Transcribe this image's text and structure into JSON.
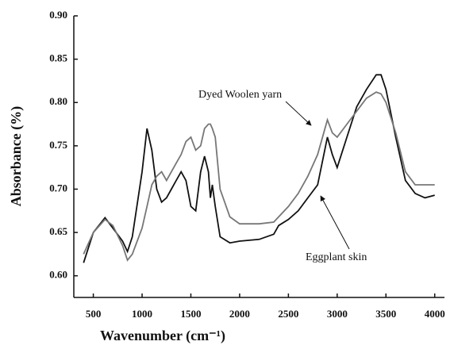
{
  "chart_data": {
    "type": "line",
    "xlabel": "Wavenumber (cm⁻¹)",
    "ylabel": "Absorbance (%)",
    "annotations": [
      "Dyed Woolen yarn",
      "Eggplant skin"
    ],
    "x": [
      400,
      500,
      620,
      700,
      800,
      850,
      900,
      1000,
      1050,
      1100,
      1150,
      1200,
      1250,
      1300,
      1350,
      1400,
      1450,
      1500,
      1550,
      1600,
      1640,
      1680,
      1700,
      1720,
      1750,
      1800,
      1900,
      2000,
      2200,
      2350,
      2400,
      2500,
      2600,
      2700,
      2800,
      2900,
      2950,
      3000,
      3100,
      3200,
      3300,
      3400,
      3450,
      3500,
      3600,
      3700,
      3800,
      3900,
      4000
    ],
    "series": [
      {
        "name": "Eggplant skin",
        "color": "#111111",
        "values": [
          0.615,
          0.65,
          0.667,
          0.655,
          0.64,
          0.628,
          0.645,
          0.72,
          0.77,
          0.745,
          0.7,
          0.685,
          0.69,
          0.7,
          0.71,
          0.72,
          0.71,
          0.68,
          0.675,
          0.72,
          0.738,
          0.72,
          0.69,
          0.705,
          0.68,
          0.645,
          0.638,
          0.64,
          0.642,
          0.648,
          0.658,
          0.665,
          0.675,
          0.69,
          0.705,
          0.76,
          0.74,
          0.725,
          0.76,
          0.795,
          0.815,
          0.832,
          0.832,
          0.815,
          0.76,
          0.71,
          0.695,
          0.69,
          0.693
        ]
      },
      {
        "name": "Dyed Woolen yarn",
        "color": "#777777",
        "values": [
          0.625,
          0.65,
          0.665,
          0.658,
          0.635,
          0.618,
          0.625,
          0.655,
          0.68,
          0.705,
          0.715,
          0.72,
          0.71,
          0.72,
          0.73,
          0.74,
          0.755,
          0.76,
          0.745,
          0.75,
          0.77,
          0.775,
          0.775,
          0.77,
          0.76,
          0.7,
          0.668,
          0.66,
          0.66,
          0.662,
          0.668,
          0.68,
          0.695,
          0.715,
          0.74,
          0.78,
          0.765,
          0.76,
          0.775,
          0.79,
          0.805,
          0.812,
          0.81,
          0.8,
          0.765,
          0.72,
          0.705,
          0.705,
          0.705
        ]
      }
    ],
    "xlim": [
      300,
      4100
    ],
    "xticks": [
      500,
      1000,
      1500,
      2000,
      2500,
      3000,
      3500,
      4000
    ],
    "ylim": [
      0.575,
      0.9
    ],
    "yticks": [
      {
        "value": 0.6,
        "label": "0.60"
      },
      0.65,
      {
        "value": 0.7,
        "label": "0.70"
      },
      0.75,
      {
        "value": 0.8,
        "label": "0.80"
      },
      0.85,
      {
        "value": 0.9,
        "label": "0.90"
      }
    ]
  }
}
